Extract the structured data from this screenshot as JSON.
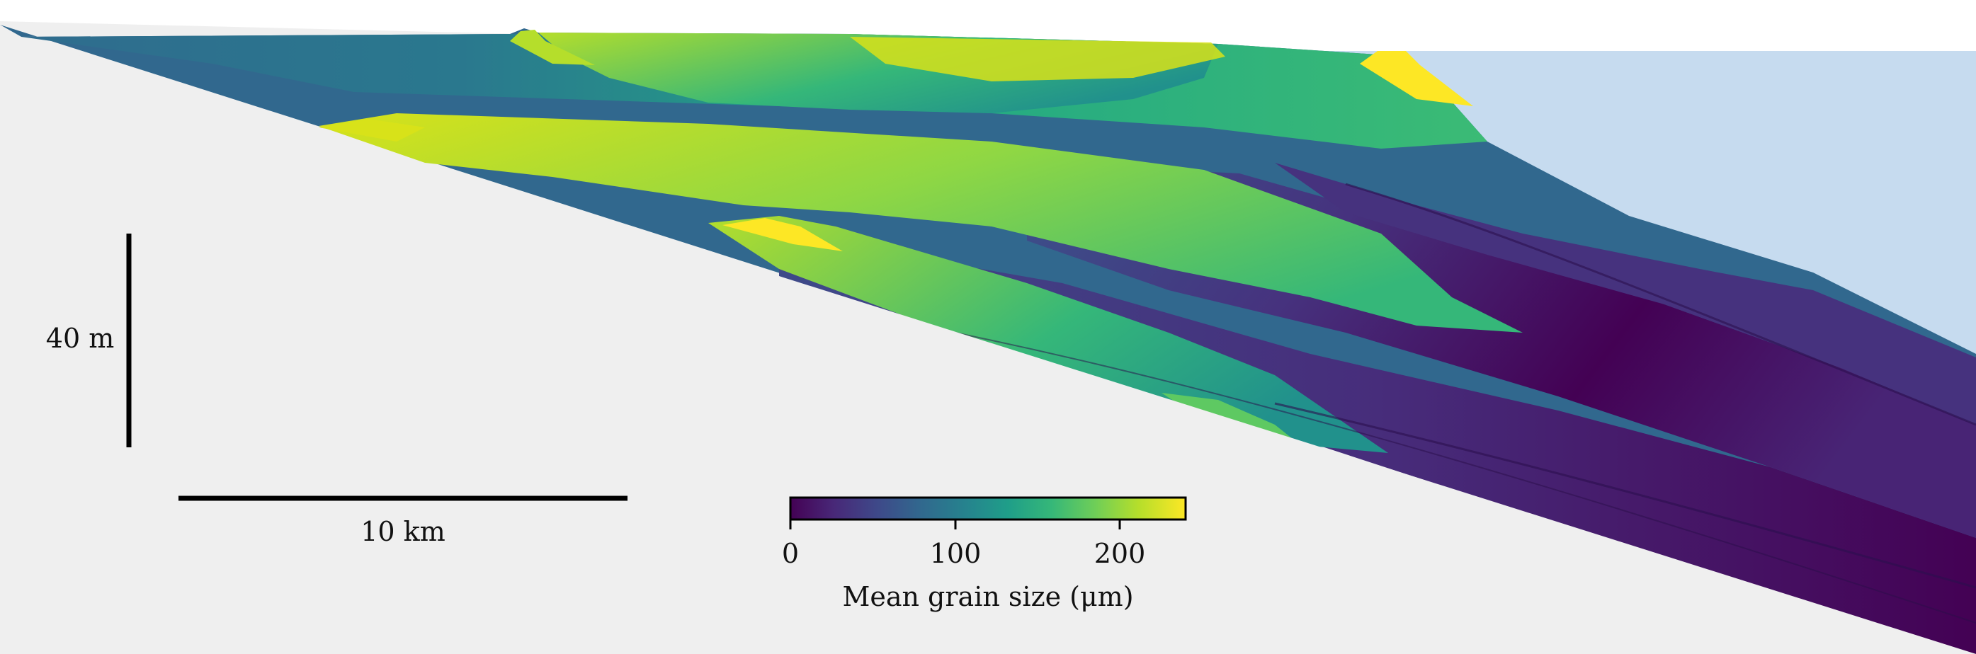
{
  "scale_bars": {
    "vertical_label": "40 m",
    "horizontal_label": "10 km"
  },
  "colorbar": {
    "label": "Mean grain size (μm)",
    "ticks": [
      "0",
      "100",
      "200"
    ],
    "min": 0,
    "max": 240,
    "colormap": "viridis"
  },
  "colors": {
    "background_sediment": "#efefef",
    "water": "#c6dbef",
    "viridis": [
      "#440154",
      "#482878",
      "#3e4989",
      "#31688e",
      "#26828e",
      "#1f9e89",
      "#35b779",
      "#6ece58",
      "#b5de2b",
      "#fde725"
    ]
  }
}
